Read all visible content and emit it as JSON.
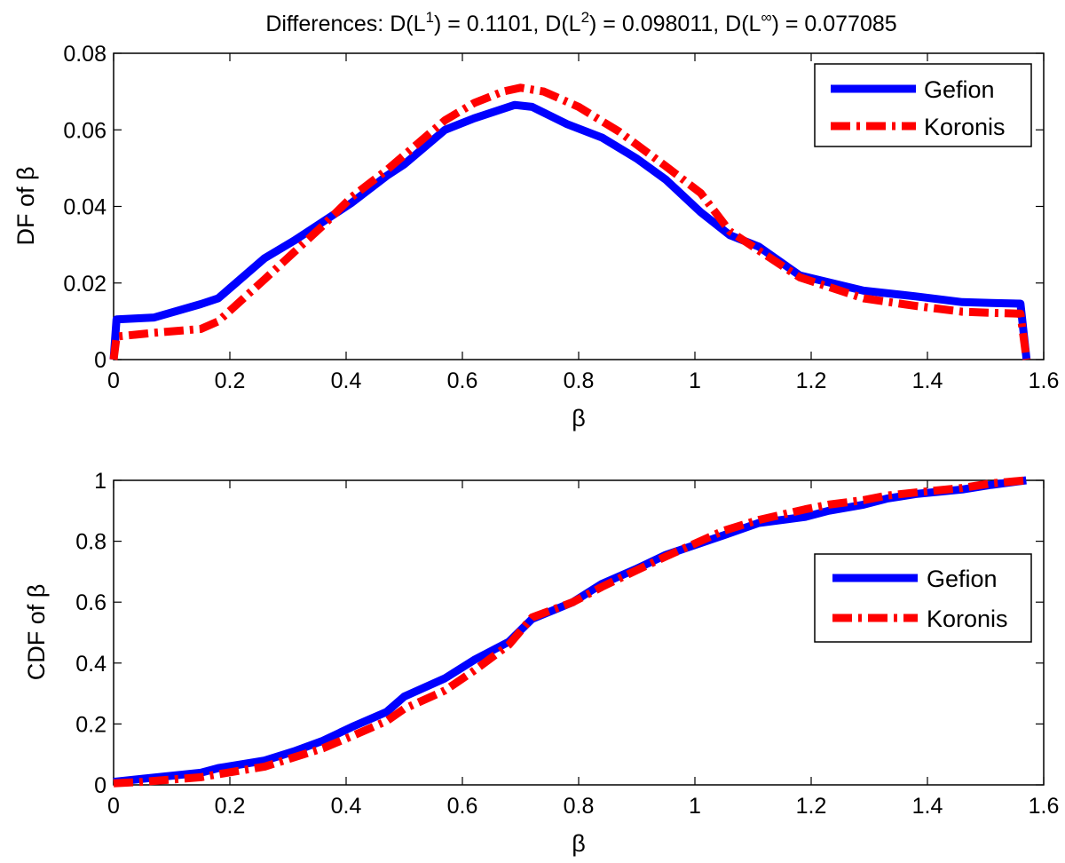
{
  "chart_data": [
    {
      "type": "line",
      "title": "Differences: D(L1) = 0.1101, D(L2) = 0.098011, D(L∞) = 0.077085",
      "title_parts": {
        "prefix": "Differences: D(L",
        "sup1": "1",
        "mid1": ") = 0.1101, D(L",
        "sup2": "2",
        "mid2": ") = 0.098011, D(L",
        "sup3": "∞",
        "suffix": ") = 0.077085"
      },
      "xlabel": "β",
      "ylabel": "DF of β",
      "xlim": [
        0,
        1.6
      ],
      "ylim": [
        0,
        0.08
      ],
      "xticks": [
        0,
        0.2,
        0.4,
        0.6,
        0.8,
        1,
        1.2,
        1.4,
        1.6
      ],
      "xtick_labels": [
        "0",
        "0.2",
        "0.4",
        "0.6",
        "0.8",
        "1",
        "1.2",
        "1.4",
        "1.6"
      ],
      "yticks": [
        0,
        0.02,
        0.04,
        0.06,
        0.08
      ],
      "ytick_labels": [
        "0",
        "0.02",
        "0.04",
        "0.06",
        "0.08"
      ],
      "legend_position": "top-right",
      "series": [
        {
          "name": "Gefion",
          "color": "#0000ff",
          "style": "solid",
          "x": [
            0,
            0.005,
            0.07,
            0.15,
            0.18,
            0.26,
            0.31,
            0.36,
            0.41,
            0.47,
            0.5,
            0.57,
            0.62,
            0.69,
            0.72,
            0.78,
            0.84,
            0.9,
            0.95,
            1.01,
            1.06,
            1.11,
            1.18,
            1.29,
            1.38,
            1.46,
            1.51,
            1.56,
            1.5705
          ],
          "values": [
            0,
            0.0105,
            0.011,
            0.0145,
            0.016,
            0.0265,
            0.031,
            0.036,
            0.041,
            0.048,
            0.051,
            0.06,
            0.063,
            0.0665,
            0.066,
            0.0615,
            0.058,
            0.0525,
            0.047,
            0.0385,
            0.0325,
            0.0295,
            0.022,
            0.018,
            0.0165,
            0.015,
            0.0148,
            0.0146,
            0
          ]
        },
        {
          "name": "Koronis",
          "color": "#ff0000",
          "style": "dash-dot",
          "x": [
            0,
            0.005,
            0.07,
            0.15,
            0.18,
            0.26,
            0.31,
            0.36,
            0.41,
            0.47,
            0.52,
            0.57,
            0.62,
            0.67,
            0.7,
            0.74,
            0.8,
            0.87,
            0.95,
            1.01,
            1.06,
            1.11,
            1.18,
            1.29,
            1.38,
            1.46,
            1.51,
            1.56,
            1.5705
          ],
          "values": [
            0,
            0.006,
            0.007,
            0.008,
            0.01,
            0.021,
            0.028,
            0.035,
            0.0425,
            0.0495,
            0.056,
            0.0625,
            0.067,
            0.07,
            0.071,
            0.07,
            0.066,
            0.0595,
            0.0505,
            0.0435,
            0.0335,
            0.0285,
            0.0215,
            0.016,
            0.014,
            0.0125,
            0.0122,
            0.012,
            0
          ]
        }
      ]
    },
    {
      "type": "line",
      "title": "",
      "xlabel": "β",
      "ylabel": "CDF of β",
      "xlim": [
        0,
        1.6
      ],
      "ylim": [
        0,
        1
      ],
      "xticks": [
        0,
        0.2,
        0.4,
        0.6,
        0.8,
        1,
        1.2,
        1.4,
        1.6
      ],
      "xtick_labels": [
        "0",
        "0.2",
        "0.4",
        "0.6",
        "0.8",
        "1",
        "1.2",
        "1.4",
        "1.6"
      ],
      "yticks": [
        0,
        0.2,
        0.4,
        0.6,
        0.8,
        1
      ],
      "ytick_labels": [
        "0",
        "0.2",
        "0.4",
        "0.6",
        "0.8",
        "1"
      ],
      "legend_position": "right",
      "series": [
        {
          "name": "Gefion",
          "color": "#0000ff",
          "style": "solid",
          "x": [
            0,
            0.05,
            0.15,
            0.18,
            0.26,
            0.31,
            0.36,
            0.41,
            0.47,
            0.5,
            0.57,
            0.62,
            0.68,
            0.72,
            0.79,
            0.84,
            0.9,
            0.95,
            1.05,
            1.11,
            1.19,
            1.23,
            1.29,
            1.33,
            1.38,
            1.46,
            1.51,
            1.57
          ],
          "values": [
            0.01,
            0.02,
            0.04,
            0.055,
            0.08,
            0.11,
            0.145,
            0.19,
            0.24,
            0.29,
            0.35,
            0.41,
            0.47,
            0.545,
            0.6,
            0.66,
            0.71,
            0.755,
            0.82,
            0.86,
            0.88,
            0.9,
            0.92,
            0.94,
            0.955,
            0.97,
            0.985,
            1.0
          ]
        },
        {
          "name": "Koronis",
          "color": "#ff0000",
          "style": "dash-dot",
          "x": [
            0,
            0.05,
            0.15,
            0.18,
            0.26,
            0.31,
            0.36,
            0.41,
            0.47,
            0.5,
            0.57,
            0.62,
            0.68,
            0.72,
            0.79,
            0.84,
            0.9,
            0.95,
            1.05,
            1.11,
            1.19,
            1.23,
            1.29,
            1.33,
            1.38,
            1.46,
            1.51,
            1.57
          ],
          "values": [
            0.005,
            0.01,
            0.025,
            0.035,
            0.06,
            0.09,
            0.12,
            0.16,
            0.21,
            0.25,
            0.31,
            0.375,
            0.46,
            0.55,
            0.6,
            0.65,
            0.705,
            0.75,
            0.835,
            0.87,
            0.905,
            0.92,
            0.935,
            0.95,
            0.96,
            0.975,
            0.99,
            1.0
          ]
        }
      ]
    }
  ]
}
